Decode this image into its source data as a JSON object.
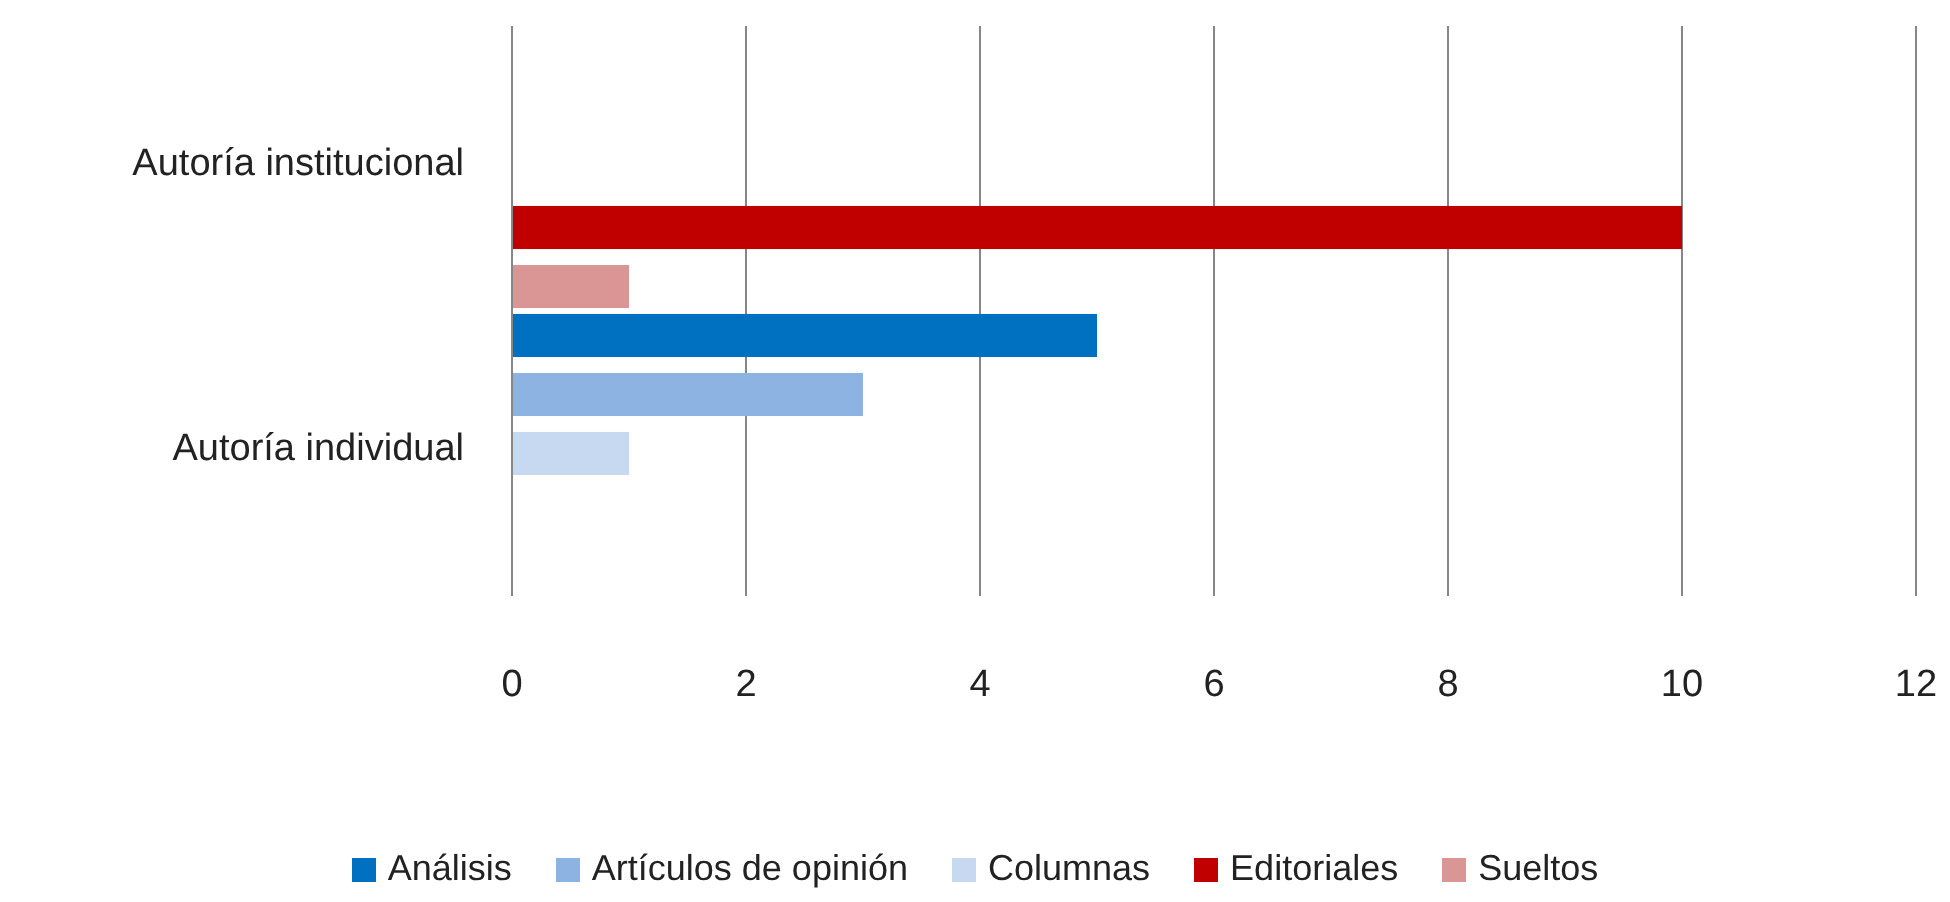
{
  "chart_data": {
    "type": "bar",
    "orientation": "horizontal",
    "categories": [
      "Autoría institucional",
      "Autoría individual"
    ],
    "series": [
      {
        "name": "Análisis",
        "color": "#0070c0",
        "values": [
          0,
          5
        ]
      },
      {
        "name": "Artículos de opinión",
        "color": "#8db3e2",
        "values": [
          0,
          3
        ]
      },
      {
        "name": "Columnas",
        "color": "#c6d9f1",
        "values": [
          0,
          1
        ]
      },
      {
        "name": "Editoriales",
        "color": "#c00000",
        "values": [
          10,
          0
        ]
      },
      {
        "name": "Sueltos",
        "color": "#d99694",
        "values": [
          1,
          0
        ]
      }
    ],
    "xlim": [
      0,
      12
    ],
    "xticks": [
      0,
      2,
      4,
      6,
      8,
      10,
      12
    ],
    "grid": "x",
    "legend": "bottom"
  }
}
